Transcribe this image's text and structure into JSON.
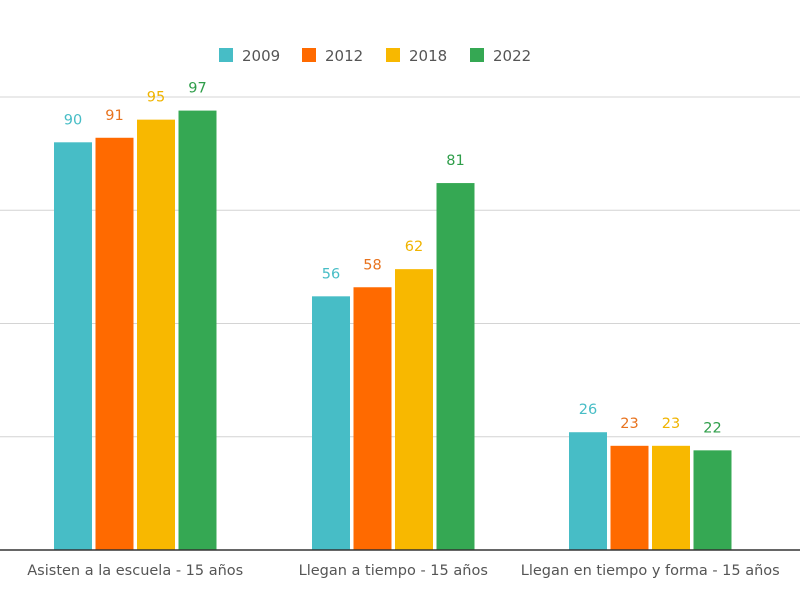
{
  "chart_data": {
    "type": "bar",
    "title": "",
    "xlabel": "",
    "ylabel": "",
    "ylim": [
      0,
      100
    ],
    "grid": true,
    "legend_position": "top",
    "categories": [
      "Asisten a la escuela - 15 años",
      "Llegan a tiempo - 15 años",
      "Llegan en tiempo y forma - 15 años"
    ],
    "series": [
      {
        "name": "2009",
        "color": "#47bdc6",
        "label_color": "#47bdc6",
        "values": [
          90,
          56,
          26
        ]
      },
      {
        "name": "2012",
        "color": "#ff6a00",
        "label_color": "#e8731e",
        "values": [
          91,
          58,
          23
        ]
      },
      {
        "name": "2018",
        "color": "#f8b800",
        "label_color": "#f0b400",
        "values": [
          95,
          62,
          23
        ]
      },
      {
        "name": "2022",
        "color": "#35a853",
        "label_color": "#2f9e4a",
        "values": [
          97,
          81,
          22
        ]
      }
    ],
    "data_labels": [
      [
        "90",
        "56",
        "26"
      ],
      [
        "91",
        "58",
        "23"
      ],
      [
        "95",
        "62",
        "23"
      ],
      [
        "97",
        "81",
        "22"
      ]
    ]
  }
}
